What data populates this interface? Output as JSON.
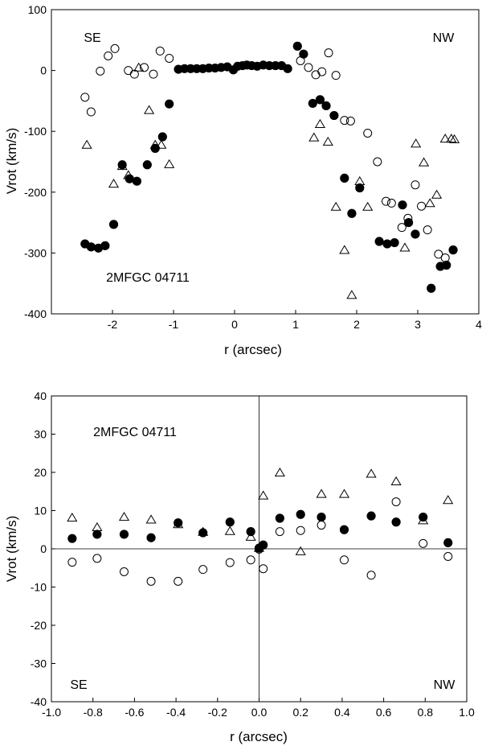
{
  "chart_data": [
    {
      "type": "scatter",
      "title": "",
      "label": "2MFGC 04711",
      "corner_left": "SE",
      "corner_right": "NW",
      "xlabel": "r  (arcsec)",
      "ylabel": "Vrot  (km/s)",
      "xlim": [
        -3,
        4
      ],
      "ylim": [
        -400,
        100
      ],
      "xticks": [
        -2,
        -1,
        0,
        1,
        2,
        3,
        4
      ],
      "yticks": [
        -400,
        -300,
        -200,
        -100,
        0,
        100
      ],
      "series": [
        {
          "name": "filled circles",
          "marker": "filled-circle",
          "points": [
            [
              -2.45,
              -285
            ],
            [
              -2.35,
              -290
            ],
            [
              -2.23,
              -292
            ],
            [
              -2.12,
              -288
            ],
            [
              -1.98,
              -253
            ],
            [
              -1.84,
              -155
            ],
            [
              -1.72,
              -178
            ],
            [
              -1.6,
              -182
            ],
            [
              -1.43,
              -155
            ],
            [
              -1.3,
              -128
            ],
            [
              -1.18,
              -109
            ],
            [
              -1.07,
              -55
            ],
            [
              -0.92,
              2
            ],
            [
              -0.82,
              3
            ],
            [
              -0.72,
              3
            ],
            [
              -0.62,
              3
            ],
            [
              -0.52,
              3
            ],
            [
              -0.42,
              4
            ],
            [
              -0.32,
              4
            ],
            [
              -0.22,
              5
            ],
            [
              -0.12,
              6
            ],
            [
              -0.02,
              1
            ],
            [
              0.05,
              7
            ],
            [
              0.13,
              8
            ],
            [
              0.2,
              9
            ],
            [
              0.28,
              8
            ],
            [
              0.37,
              7
            ],
            [
              0.47,
              9
            ],
            [
              0.57,
              8
            ],
            [
              0.67,
              8
            ],
            [
              0.77,
              8
            ],
            [
              0.87,
              3
            ],
            [
              1.03,
              40
            ],
            [
              1.13,
              27
            ],
            [
              1.28,
              -54
            ],
            [
              1.4,
              -48
            ],
            [
              1.5,
              -58
            ],
            [
              1.63,
              -74
            ],
            [
              1.8,
              -177
            ],
            [
              1.92,
              -235
            ],
            [
              2.05,
              -193
            ],
            [
              2.37,
              -281
            ],
            [
              2.5,
              -285
            ],
            [
              2.62,
              -283
            ],
            [
              2.75,
              -221
            ],
            [
              2.85,
              -250
            ],
            [
              2.96,
              -269
            ],
            [
              3.22,
              -358
            ],
            [
              3.37,
              -322
            ],
            [
              3.47,
              -320
            ],
            [
              3.58,
              -295
            ]
          ]
        },
        {
          "name": "open circles",
          "marker": "open-circle",
          "points": [
            [
              -2.45,
              -44
            ],
            [
              -2.35,
              -68
            ],
            [
              -2.2,
              -1
            ],
            [
              -2.07,
              24
            ],
            [
              -1.96,
              36
            ],
            [
              -1.74,
              0
            ],
            [
              -1.64,
              -6
            ],
            [
              -1.48,
              5
            ],
            [
              -1.33,
              -6
            ],
            [
              -1.22,
              32
            ],
            [
              -1.07,
              20
            ],
            [
              1.08,
              16
            ],
            [
              1.21,
              5
            ],
            [
              1.33,
              -7
            ],
            [
              1.43,
              -2
            ],
            [
              1.54,
              29
            ],
            [
              1.66,
              -8
            ],
            [
              1.8,
              -82
            ],
            [
              1.9,
              -83
            ],
            [
              2.18,
              -103
            ],
            [
              2.34,
              -150
            ],
            [
              2.48,
              -215
            ],
            [
              2.57,
              -218
            ],
            [
              2.74,
              -258
            ],
            [
              2.84,
              -243
            ],
            [
              2.96,
              -188
            ],
            [
              3.06,
              -223
            ],
            [
              3.16,
              -262
            ],
            [
              3.34,
              -302
            ],
            [
              3.45,
              -308
            ]
          ]
        },
        {
          "name": "open triangles",
          "marker": "open-triangle",
          "points": [
            [
              -2.42,
              -123
            ],
            [
              -1.98,
              -187
            ],
            [
              -1.84,
              -158
            ],
            [
              -1.74,
              -173
            ],
            [
              -1.57,
              4
            ],
            [
              -1.4,
              -66
            ],
            [
              -1.3,
              -123
            ],
            [
              -1.2,
              -123
            ],
            [
              -1.07,
              -155
            ],
            [
              1.3,
              -111
            ],
            [
              1.4,
              -89
            ],
            [
              1.53,
              -118
            ],
            [
              1.66,
              -225
            ],
            [
              1.8,
              -296
            ],
            [
              1.92,
              -370
            ],
            [
              2.05,
              -183
            ],
            [
              2.18,
              -225
            ],
            [
              2.79,
              -292
            ],
            [
              2.97,
              -121
            ],
            [
              3.1,
              -152
            ],
            [
              3.2,
              -219
            ],
            [
              3.31,
              -205
            ],
            [
              3.45,
              -113
            ],
            [
              3.55,
              -113
            ],
            [
              3.6,
              -114
            ]
          ]
        }
      ]
    },
    {
      "type": "scatter",
      "title": "",
      "label": "2MFGC 04711",
      "corner_left": "SE",
      "corner_right": "NW",
      "xlabel": "r  (arcsec)",
      "ylabel": "Vrot  (km/s)",
      "xlim": [
        -1.0,
        1.0
      ],
      "ylim": [
        -40,
        40
      ],
      "xticks": [
        "-1.0",
        "-0.8",
        "-0.6",
        "-0.4",
        "-0.2",
        "0.0",
        "0.2",
        "0.4",
        "0.6",
        "0.8",
        "1.0"
      ],
      "yticks": [
        -40,
        -30,
        -20,
        -10,
        0,
        10,
        20,
        30,
        40
      ],
      "series": [
        {
          "name": "filled circles",
          "marker": "filled-circle",
          "points": [
            [
              -0.9,
              2.7
            ],
            [
              -0.78,
              3.8
            ],
            [
              -0.65,
              3.8
            ],
            [
              -0.52,
              2.9
            ],
            [
              -0.39,
              6.8
            ],
            [
              -0.27,
              4.2
            ],
            [
              -0.14,
              7.0
            ],
            [
              -0.04,
              4.5
            ],
            [
              0.0,
              0.2
            ],
            [
              0.02,
              1.0
            ],
            [
              0.1,
              8.0
            ],
            [
              0.2,
              9.0
            ],
            [
              0.3,
              8.3
            ],
            [
              0.41,
              5.0
            ],
            [
              0.54,
              8.6
            ],
            [
              0.66,
              7.0
            ],
            [
              0.79,
              8.3
            ],
            [
              0.91,
              1.6
            ]
          ]
        },
        {
          "name": "open circles",
          "marker": "open-circle",
          "points": [
            [
              -0.9,
              -3.5
            ],
            [
              -0.78,
              -2.5
            ],
            [
              -0.65,
              -6.0
            ],
            [
              -0.52,
              -8.5
            ],
            [
              -0.39,
              -8.5
            ],
            [
              -0.27,
              -5.4
            ],
            [
              -0.14,
              -3.6
            ],
            [
              -0.04,
              -2.9
            ],
            [
              0.0,
              -0.1
            ],
            [
              0.02,
              -5.2
            ],
            [
              0.1,
              4.5
            ],
            [
              0.2,
              4.8
            ],
            [
              0.3,
              6.2
            ],
            [
              0.41,
              -2.9
            ],
            [
              0.54,
              -6.9
            ],
            [
              0.66,
              12.3
            ],
            [
              0.79,
              1.4
            ],
            [
              0.91,
              -2.0
            ]
          ]
        },
        {
          "name": "open triangles",
          "marker": "open-triangle",
          "points": [
            [
              -0.9,
              8.0
            ],
            [
              -0.78,
              5.5
            ],
            [
              -0.65,
              8.2
            ],
            [
              -0.52,
              7.5
            ],
            [
              -0.39,
              6.3
            ],
            [
              -0.27,
              4.3
            ],
            [
              -0.14,
              4.5
            ],
            [
              -0.04,
              3.0
            ],
            [
              0.0,
              0.1
            ],
            [
              0.02,
              13.8
            ],
            [
              0.1,
              19.8
            ],
            [
              0.2,
              -0.8
            ],
            [
              0.3,
              14.2
            ],
            [
              0.41,
              14.2
            ],
            [
              0.54,
              19.5
            ],
            [
              0.66,
              17.5
            ],
            [
              0.79,
              7.3
            ],
            [
              0.91,
              12.6
            ]
          ]
        }
      ]
    }
  ]
}
